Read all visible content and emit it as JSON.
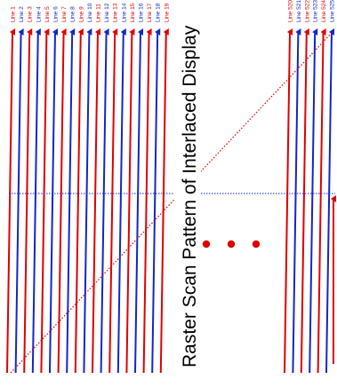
{
  "diagram": {
    "title": "Raster Scan Pattern of Interlaced Display",
    "colors": {
      "odd_field": "#e00000",
      "even_field": "#1028c8",
      "retrace": "#e00000",
      "vertical_return": "#1028c8",
      "ellipsis": "#e00000"
    },
    "left_group_labels": [
      "Line 1",
      "Line 2",
      "Line 3",
      "Line 4",
      "Line 5",
      "Line 6",
      "Line 7",
      "Line 8",
      "Line 9",
      "Line 10",
      "Line 11",
      "Line 12",
      "Line 13",
      "Line 14",
      "Line 15",
      "Line 16",
      "Line 17",
      "Line 18",
      "Line 19"
    ],
    "right_group_labels": [
      "Line 520",
      "Line 521",
      "Line 522",
      "Line 523",
      "Line 524",
      "Line 525"
    ],
    "ellipsis_dots": 3
  }
}
